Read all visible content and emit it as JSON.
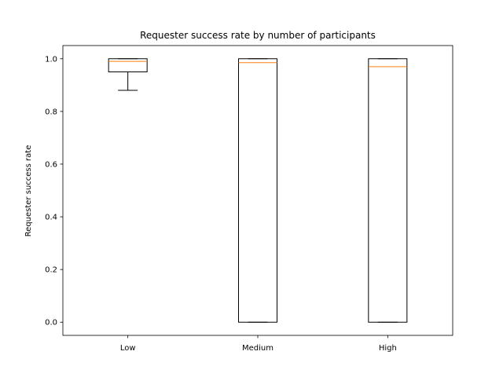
{
  "chart_data": {
    "type": "boxplot",
    "title": "Requester success rate by number of participants",
    "xlabel": "",
    "ylabel": "Requester success rate",
    "categories": [
      "Low",
      "Medium",
      "High"
    ],
    "ylim": [
      -0.05,
      1.05
    ],
    "yticks": [
      0.0,
      0.2,
      0.4,
      0.6,
      0.8,
      1.0
    ],
    "ytick_labels": [
      "0.0",
      "0.2",
      "0.4",
      "0.6",
      "0.8",
      "1.0"
    ],
    "boxes": [
      {
        "category": "Low",
        "whisker_low": 0.88,
        "q1": 0.95,
        "median": 0.99,
        "q3": 1.0,
        "whisker_high": 1.0
      },
      {
        "category": "Medium",
        "whisker_low": 0.0,
        "q1": 0.0,
        "median": 0.985,
        "q3": 1.0,
        "whisker_high": 1.0
      },
      {
        "category": "High",
        "whisker_low": 0.0,
        "q1": 0.0,
        "median": 0.97,
        "q3": 1.0,
        "whisker_high": 1.0
      }
    ],
    "colors": {
      "box": "#000000",
      "median": "#ff7f0e"
    },
    "grid": false
  }
}
